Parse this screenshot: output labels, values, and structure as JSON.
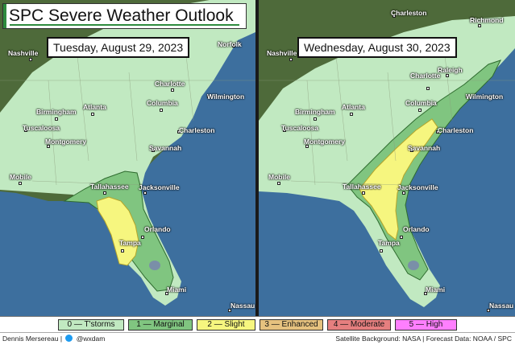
{
  "title": "SPC Severe Weather Outlook",
  "panels": [
    {
      "date": "Tuesday, August 29, 2023",
      "cities": [
        "Nashville",
        "Norfolk",
        "Charlotte",
        "Birmingham",
        "Atlanta",
        "Columbia",
        "Wilmington",
        "Tuscaloosa",
        "Charleston",
        "Montgomery",
        "Savannah",
        "Mobile",
        "Tallahassee",
        "Jacksonville",
        "Orlando",
        "Tampa",
        "Miami",
        "Nassau"
      ]
    },
    {
      "date": "Wednesday, August 30, 2023",
      "cities": [
        "Charleston",
        "Richmond",
        "Nashville",
        "Raleigh",
        "Charlotte",
        "Wilmington",
        "Birmingham",
        "Atlanta",
        "Columbia",
        "Tuscaloosa",
        "Charleston",
        "Montgomery",
        "Savannah",
        "Mobile",
        "Tallahassee",
        "Jacksonville",
        "Orlando",
        "Tampa",
        "Miami",
        "Nassau"
      ]
    }
  ],
  "legend": [
    {
      "label": "0 — T'storms",
      "color": "#c1e9c1"
    },
    {
      "label": "1 — Marginal",
      "color": "#80c580"
    },
    {
      "label": "2 — Slight",
      "color": "#f6f67f"
    },
    {
      "label": "3 — Enhanced",
      "color": "#e6c27f"
    },
    {
      "label": "4 — Moderate",
      "color": "#e67f7f"
    },
    {
      "label": "5 — High",
      "color": "#ff7fff"
    }
  ],
  "footer": {
    "author": "Dennis Mersereau",
    "handle": "@wxdam",
    "credits": "Satellite Background: NASA | Forecast Data: NOAA / SPC"
  },
  "colors": {
    "ocean": "#3d6f9e",
    "land_dark": "#4e6a3a",
    "tstorm": "#c1e9c1",
    "marginal": "#80c580",
    "slight": "#f6f67f",
    "accent": "#2e8b3e"
  }
}
